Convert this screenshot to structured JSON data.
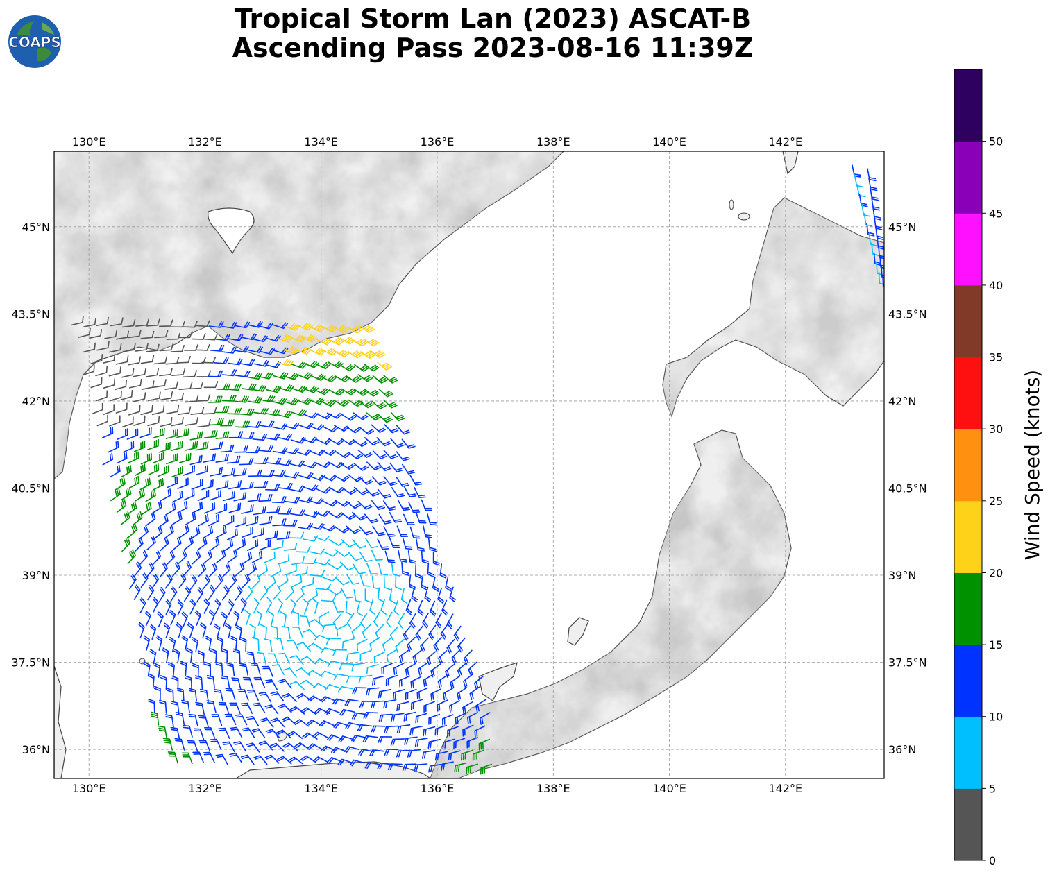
{
  "title": {
    "line1": "Tropical Storm Lan (2023) ASCAT-B",
    "line2": "Ascending Pass 2023-08-16 11:39Z"
  },
  "logo": {
    "text": "COAPS",
    "icon": "globe-logo-icon"
  },
  "map": {
    "lon_range": [
      129.4,
      143.7
    ],
    "lat_range": [
      35.5,
      46.3
    ],
    "lon_ticks": [
      "130°E",
      "132°E",
      "134°E",
      "136°E",
      "138°E",
      "140°E",
      "142°E"
    ],
    "lat_ticks": [
      "45°N",
      "43.5°N",
      "42°N",
      "40.5°N",
      "39°N",
      "37.5°N",
      "36°N"
    ],
    "gridlines": "dashed",
    "land_shading": "grayscale terrain",
    "ocean_color": "#ffffff"
  },
  "colorbar": {
    "label": "Wind Speed (knots)",
    "ticks": [
      "0",
      "5",
      "10",
      "15",
      "20",
      "25",
      "30",
      "35",
      "40",
      "45",
      "50"
    ],
    "bins": [
      {
        "range": "0-5",
        "color": "#555555"
      },
      {
        "range": "5-10",
        "color": "#00bfff"
      },
      {
        "range": "10-15",
        "color": "#0033ff"
      },
      {
        "range": "15-20",
        "color": "#009100"
      },
      {
        "range": "20-25",
        "color": "#ffd21a"
      },
      {
        "range": "25-30",
        "color": "#ff9010"
      },
      {
        "range": "30-35",
        "color": "#ff1010"
      },
      {
        "range": "35-40",
        "color": "#823a28"
      },
      {
        "range": "40-45",
        "color": "#ff10ff"
      },
      {
        "range": "45-50",
        "color": "#8a00b8"
      },
      {
        "range": "50+",
        "color": "#2e0060"
      }
    ]
  }
}
